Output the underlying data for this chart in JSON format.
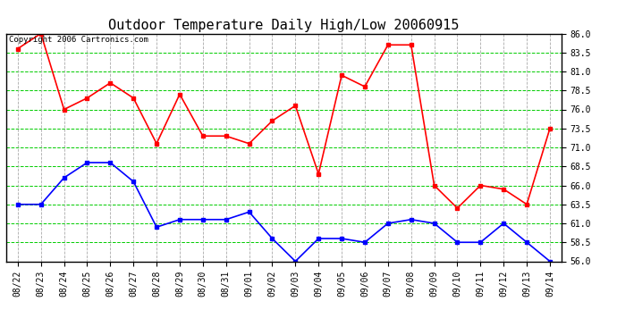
{
  "title": "Outdoor Temperature Daily High/Low 20060915",
  "copyright_text": "Copyright 2006 Cartronics.com",
  "x_labels": [
    "08/22",
    "08/23",
    "08/24",
    "08/25",
    "08/26",
    "08/27",
    "08/28",
    "08/29",
    "08/30",
    "08/31",
    "09/01",
    "09/02",
    "09/03",
    "09/04",
    "09/05",
    "09/06",
    "09/07",
    "09/08",
    "09/09",
    "09/10",
    "09/11",
    "09/12",
    "09/13",
    "09/14"
  ],
  "high_temps": [
    84.0,
    86.0,
    76.0,
    77.5,
    79.5,
    77.5,
    71.5,
    78.0,
    72.5,
    72.5,
    71.5,
    74.5,
    76.5,
    67.5,
    80.5,
    79.0,
    84.5,
    84.5,
    66.0,
    63.0,
    66.0,
    65.5,
    63.5,
    73.5
  ],
  "low_temps": [
    63.5,
    63.5,
    67.0,
    69.0,
    69.0,
    66.5,
    60.5,
    61.5,
    61.5,
    61.5,
    62.5,
    59.0,
    56.0,
    59.0,
    59.0,
    58.5,
    61.0,
    61.5,
    61.0,
    58.5,
    58.5,
    61.0,
    58.5,
    56.0
  ],
  "high_color": "#ff0000",
  "low_color": "#0000ff",
  "bg_color": "#ffffff",
  "plot_bg_color": "#ffffff",
  "grid_h_color": "#00cc00",
  "grid_v_color": "#aaaaaa",
  "title_color": "#000000",
  "border_color": "#000000",
  "ylim_min": 56.0,
  "ylim_max": 86.0,
  "ytick_values": [
    56.0,
    58.5,
    61.0,
    63.5,
    66.0,
    68.5,
    71.0,
    73.5,
    76.0,
    78.5,
    81.0,
    83.5,
    86.0
  ],
  "marker": "s",
  "marker_size": 2.5,
  "linewidth": 1.2,
  "title_fontsize": 11,
  "tick_fontsize": 7,
  "copyright_fontsize": 6.5
}
